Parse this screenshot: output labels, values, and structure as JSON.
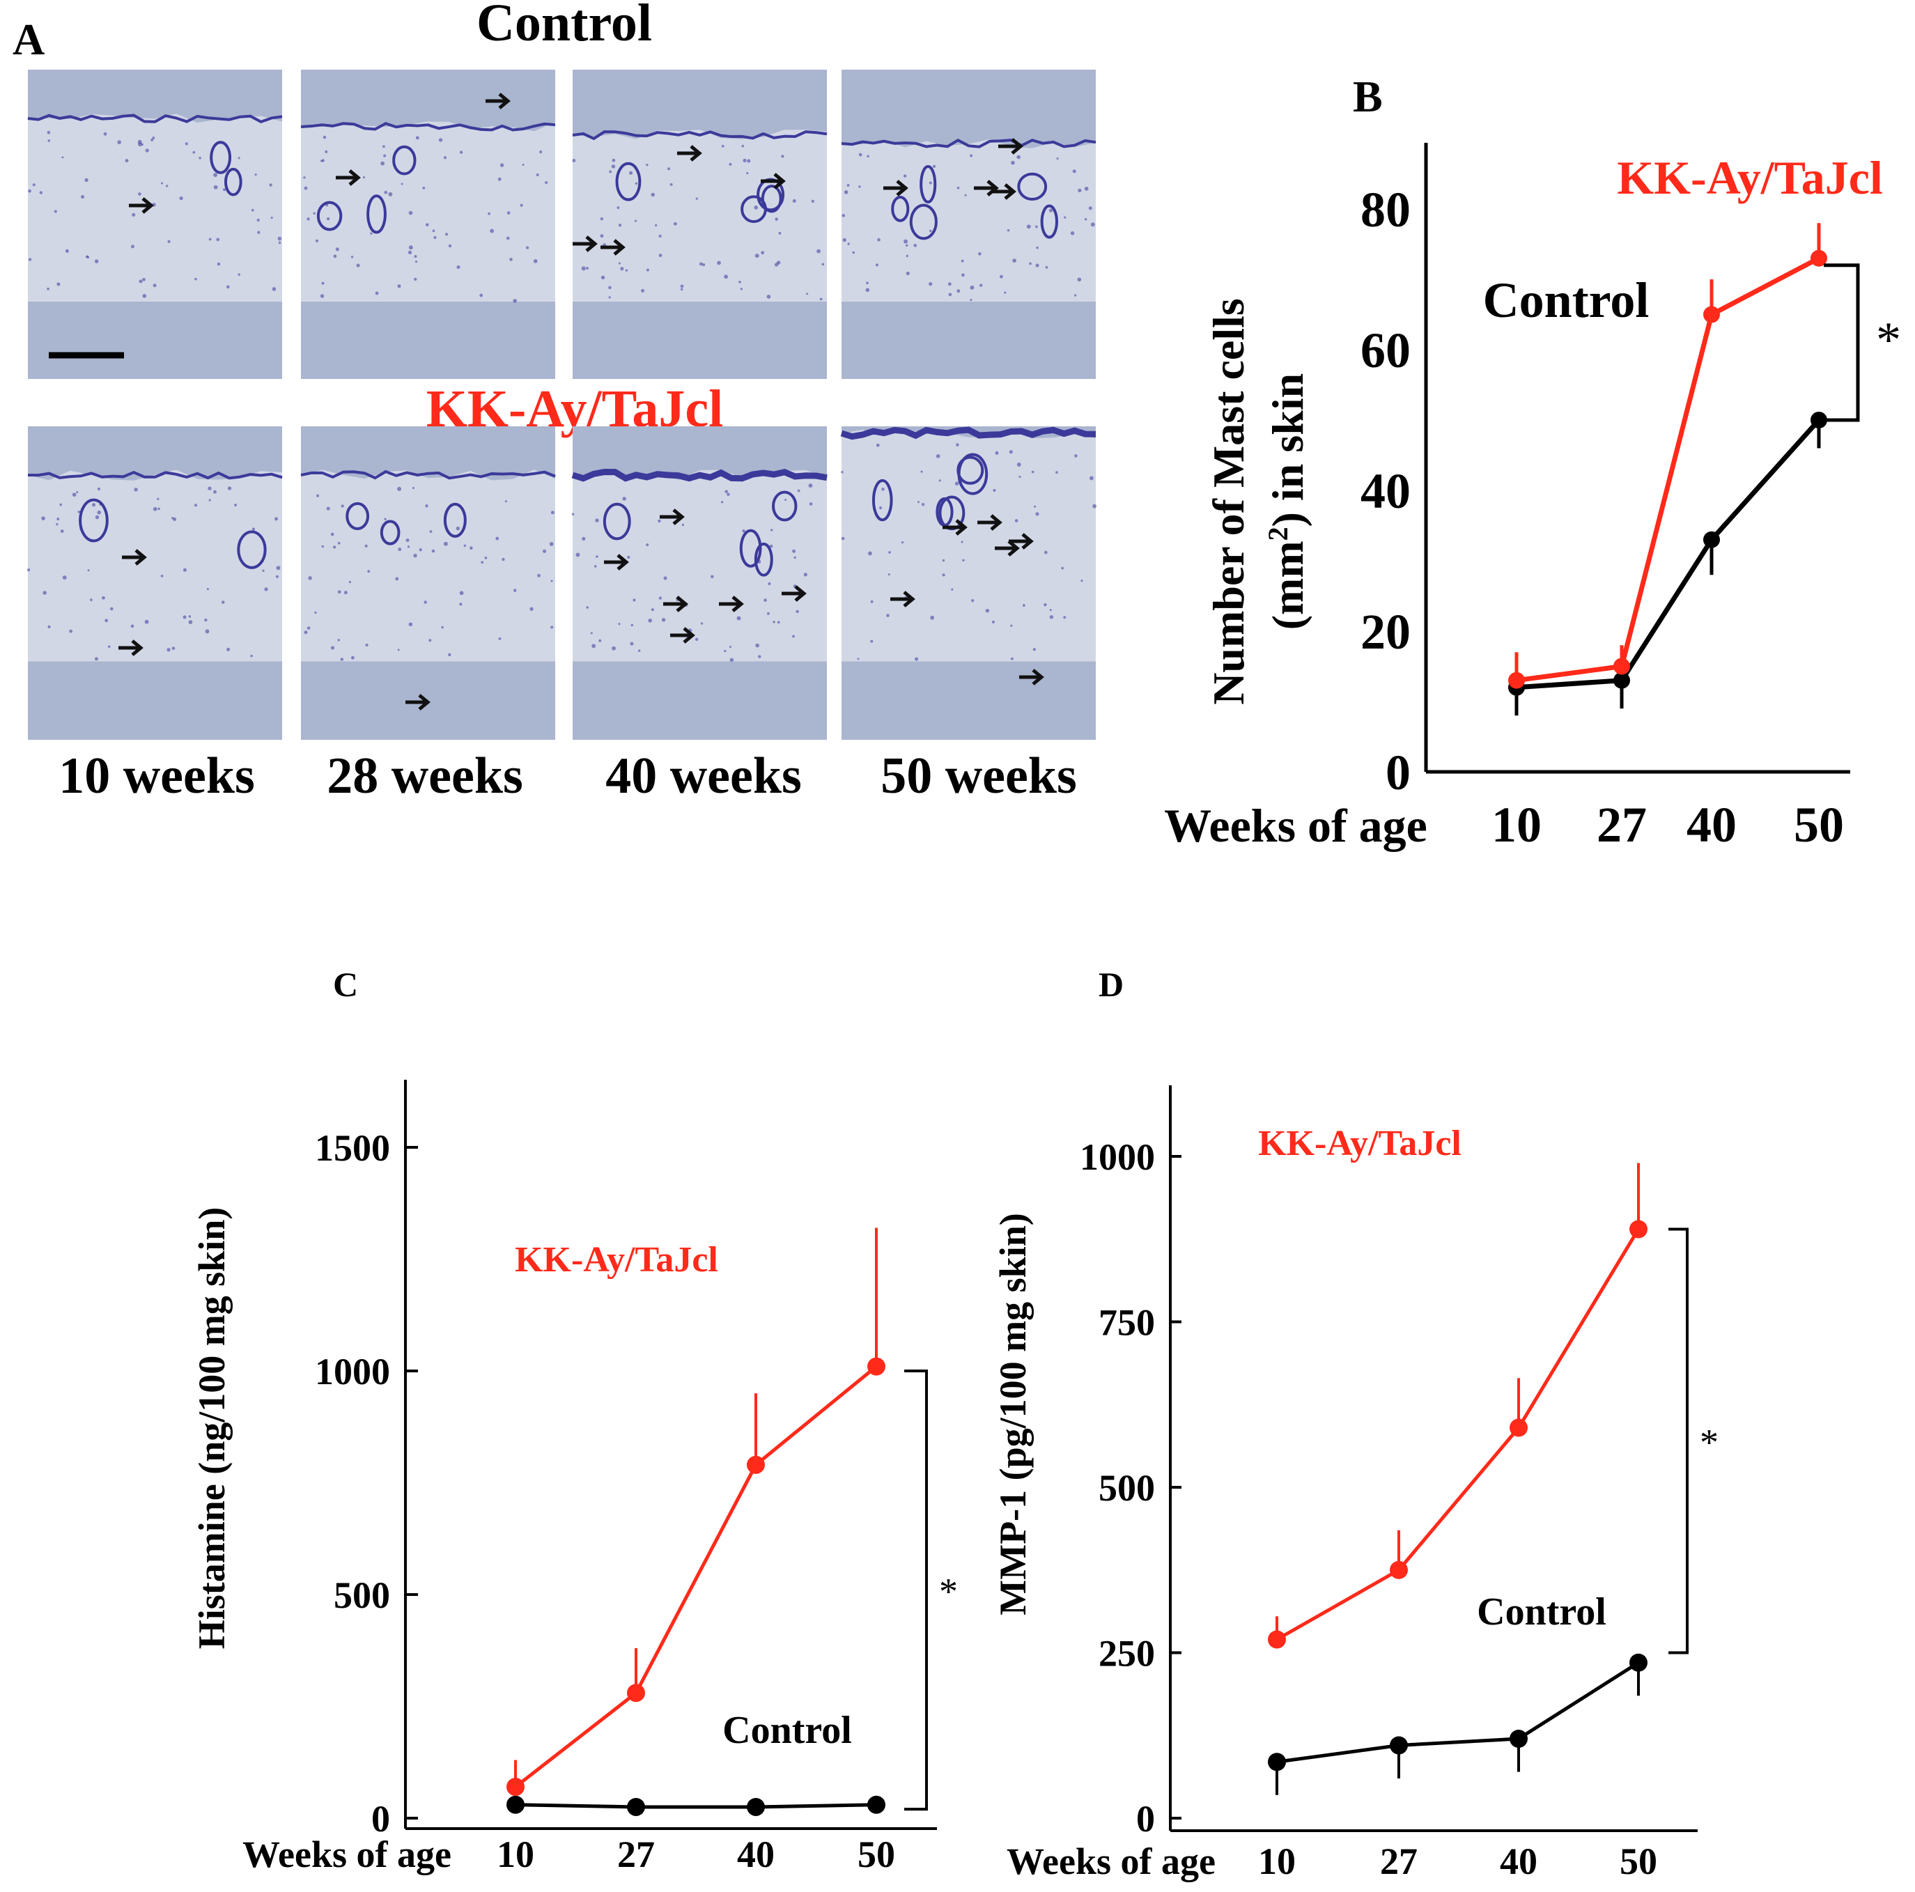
{
  "colors": {
    "control": "#000000",
    "kkay": "#ff2a1a",
    "tissue_bg": "#aab5cf",
    "tissue_light": "#dfe3ee",
    "tissue_stain": "#3b3a9a"
  },
  "panel_a": {
    "letter": "A",
    "top_title": "Control",
    "bottom_title": "KK-Ay/TaJcl",
    "column_labels": [
      "10 weeks",
      "28 weeks",
      "40 weeks",
      "50 weeks"
    ]
  },
  "chart_data": [
    {
      "panel": "B",
      "type": "line",
      "x": [
        10,
        27,
        40,
        50
      ],
      "xlabel": "Weeks of age",
      "ylabel": "Number of Mast cells (mm²) in skin",
      "ylim": [
        0,
        80
      ],
      "yticks": [
        0,
        20,
        40,
        60,
        80
      ],
      "series": [
        {
          "name": "Control",
          "color": "#000000",
          "values": [
            12,
            13,
            33,
            50
          ],
          "errors": [
            4,
            4,
            5,
            4
          ],
          "error_dir": "down"
        },
        {
          "name": "KK-Ay/TaJcl",
          "color": "#ff2a1a",
          "values": [
            13,
            15,
            65,
            73
          ],
          "errors": [
            4,
            3,
            5,
            5
          ],
          "error_dir": "up"
        }
      ],
      "annotation": "*"
    },
    {
      "panel": "C",
      "type": "line",
      "x": [
        10,
        27,
        40,
        50
      ],
      "xlabel": "Weeks of age",
      "ylabel": "Histamine (ng/100 mg skin)",
      "ylim": [
        0,
        1500
      ],
      "yticks": [
        0,
        500,
        1000,
        1500
      ],
      "series": [
        {
          "name": "Control",
          "color": "#000000",
          "values": [
            30,
            25,
            25,
            30
          ],
          "errors": [
            0,
            0,
            0,
            0
          ],
          "error_dir": "down"
        },
        {
          "name": "KK-Ay/TaJcl",
          "color": "#ff2a1a",
          "values": [
            70,
            280,
            790,
            1010
          ],
          "errors": [
            60,
            100,
            160,
            310
          ],
          "error_dir": "up"
        }
      ],
      "annotation": "*"
    },
    {
      "panel": "D",
      "type": "line",
      "x": [
        10,
        27,
        40,
        50
      ],
      "xlabel": "Weeks of age",
      "ylabel": "MMP-1 (pg/100 mg skin)",
      "ylim": [
        0,
        1000
      ],
      "yticks": [
        0,
        250,
        500,
        750,
        1000
      ],
      "series": [
        {
          "name": "Control",
          "color": "#000000",
          "values": [
            85,
            110,
            120,
            235
          ],
          "errors": [
            50,
            50,
            50,
            50
          ],
          "error_dir": "down"
        },
        {
          "name": "KK-Ay/TaJcl",
          "color": "#ff2a1a",
          "values": [
            270,
            375,
            590,
            890
          ],
          "errors": [
            35,
            60,
            75,
            100
          ],
          "error_dir": "up"
        }
      ],
      "annotation": "*"
    }
  ]
}
